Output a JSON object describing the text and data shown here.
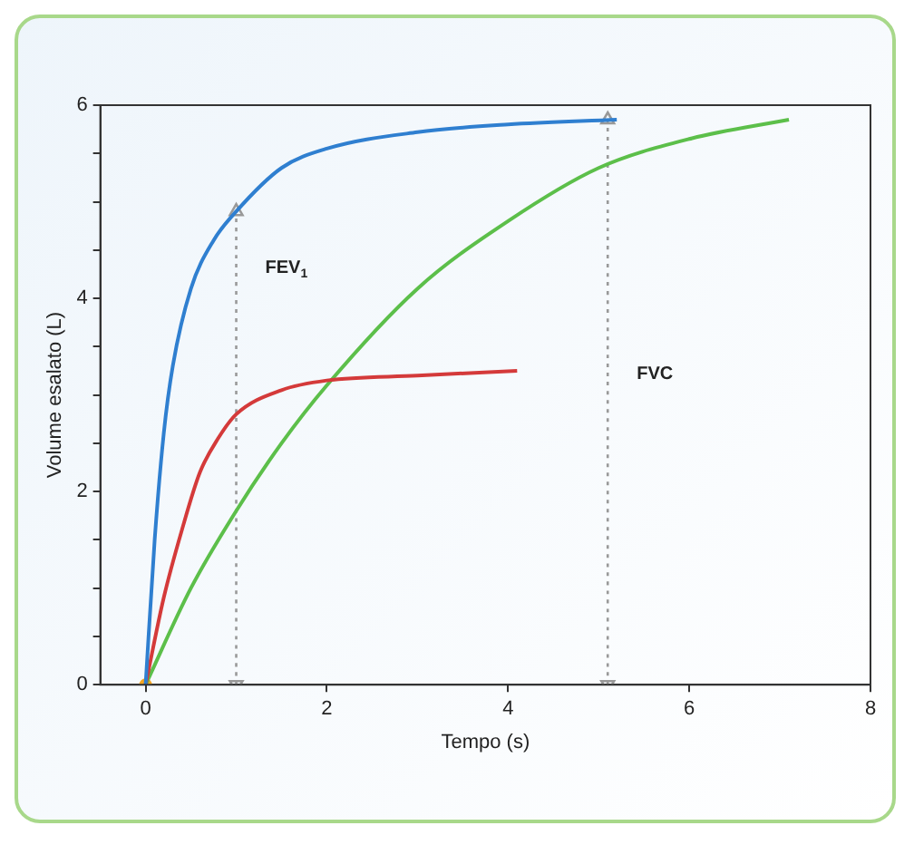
{
  "chart_data": {
    "type": "line",
    "xlabel": "Tempo (s)",
    "ylabel": "Volume esalato (L)",
    "xlim": [
      -0.5,
      8
    ],
    "xticks": [
      0,
      2,
      4,
      6,
      8
    ],
    "ylim": [
      0,
      6
    ],
    "yticks": [
      0,
      {
        "value": 0.5,
        "label": null
      },
      {
        "value": 1,
        "label": null
      },
      {
        "value": 1.5,
        "label": null
      },
      2,
      {
        "value": 2.5,
        "label": null
      },
      {
        "value": 3,
        "label": null
      },
      {
        "value": 3.5,
        "label": null
      },
      4,
      {
        "value": 4.5,
        "label": null
      },
      {
        "value": 5,
        "label": null
      },
      {
        "value": 5.5,
        "label": null
      },
      6
    ],
    "grid": false,
    "legend": false,
    "marker": "none",
    "line_style": "solid",
    "series": [
      {
        "color": "#2f7fd0",
        "x": [
          0,
          0.1,
          0.2,
          0.3,
          0.5,
          0.75,
          1,
          1.5,
          2,
          3,
          4,
          5.2
        ],
        "values": [
          0,
          1.5,
          2.6,
          3.3,
          4.1,
          4.6,
          4.9,
          5.35,
          5.55,
          5.72,
          5.8,
          5.85
        ]
      },
      {
        "color": "#d43a3a",
        "x": [
          0,
          0.2,
          0.4,
          0.6,
          0.8,
          1,
          1.5,
          2,
          3,
          4.1
        ],
        "values": [
          0,
          0.9,
          1.6,
          2.2,
          2.55,
          2.8,
          3.05,
          3.15,
          3.2,
          3.25
        ]
      },
      {
        "color": "#5cbf4a",
        "x": [
          0,
          0.5,
          1,
          1.5,
          2,
          3,
          4,
          5,
          6,
          7.1
        ],
        "values": [
          0,
          1,
          1.8,
          2.5,
          3.1,
          4.1,
          4.8,
          5.35,
          5.65,
          5.85
        ]
      },
      {
        "type": "scatter",
        "marker": "circle",
        "color": "#f5a623",
        "x": [
          0
        ],
        "values": [
          0
        ]
      },
      {
        "color": "#999999",
        "line_style": "dotted",
        "marker": "triangle",
        "x": [
          1,
          1
        ],
        "values": [
          0,
          4.9
        ]
      },
      {
        "color": "#999999",
        "line_style": "dotted",
        "marker": "triangle",
        "x": [
          5.1,
          5.1
        ],
        "values": [
          0,
          5.85
        ]
      }
    ],
    "annotations": [
      "FEV$_{1}$",
      "FVC"
    ]
  }
}
